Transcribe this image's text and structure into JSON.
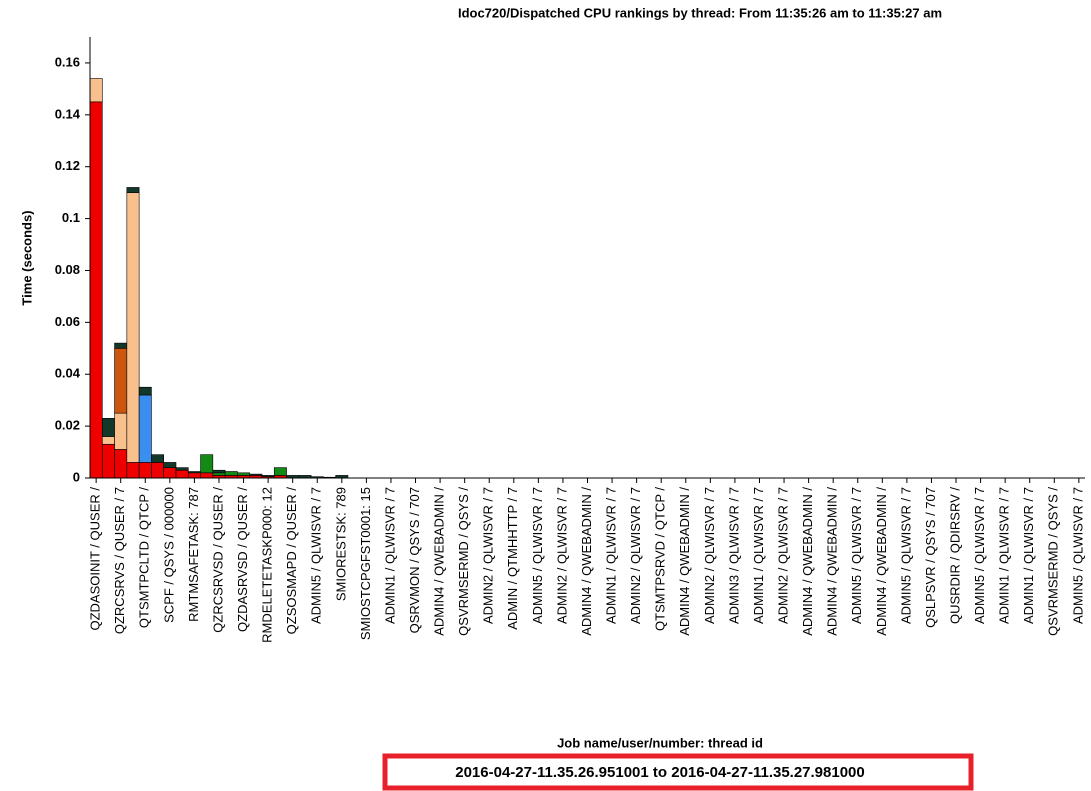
{
  "chart_data": {
    "type": "stacked_bar",
    "title": "Idoc720/Dispatched CPU rankings by thread: From 11:35:26 am to 11:35:27 am",
    "y_label": "Time (seconds)",
    "x_label": "Job name/user/number: thread id",
    "subtitle": "2016-04-27-11.35.26.951001 to 2016-04-27-11.35.27.981000",
    "categories": [
      "QZDASOINIT / QUSER /",
      null,
      "QZRCSRVS / QUSER / 7",
      null,
      "QTSMTPCLTD / QTCP /",
      null,
      "SCPF / QSYS / 000000",
      null,
      "RMTMSAFETASK: 787",
      null,
      "QZRCSRVSD / QUSER /",
      null,
      "QZDASRVSD / QUSER /",
      null,
      "RMDELETETASKP000: 12",
      null,
      "QZSOSMAPD / QUSER /",
      null,
      "ADMIN5 / QLWISVR / 7",
      null,
      "SMIORESTSK: 789",
      null,
      "SMIOSTCPGFST0001: 15",
      null,
      "ADMIN1 / QLWISVR / 7",
      null,
      "QSRVMON / QSYS / 707",
      null,
      "ADMIN4 / QWEBADMIN /",
      null,
      "QSVRMSERMD / QSYS /",
      null,
      "ADMIN2 / QLWISVR / 7",
      null,
      "ADMIN / QTMHHTTP / 7",
      null,
      "ADMIN5 / QLWISVR / 7",
      null,
      "ADMIN2 / QLWISVR / 7",
      null,
      "ADMIN4 / QWEBADMIN /",
      null,
      "ADMIN1 / QLWISVR / 7",
      null,
      "ADMIN2 / QLWISVR / 7",
      null,
      "QTSMTPSRVD / QTCP /",
      null,
      "ADMIN4 / QWEBADMIN /",
      null,
      "ADMIN2 / QLWISVR / 7",
      null,
      "ADMIN3 / QLWISVR / 7",
      null,
      "ADMIN1 / QLWISVR / 7",
      null,
      "ADMIN2 / QLWISVR / 7",
      null,
      "ADMIN4 / QWEBADMIN /",
      null,
      "ADMIN4 / QWEBADMIN /",
      null,
      "ADMIN5 / QLWISVR / 7",
      null,
      "ADMIN4 / QWEBADMIN /",
      null,
      "ADMIN5 / QLWISVR / 7",
      null,
      "QSLPSVR / QSYS / 707",
      null,
      "QUSRDIR / QDIRSRV /",
      null,
      "ADMIN5 / QLWISVR / 7",
      null,
      "ADMIN1 / QLWISVR / 7",
      null,
      "ADMIN1 / QLWISVR / 7",
      null,
      "QSVRMSERMD / QSYS /",
      null,
      "ADMIN5 / QLWISVR / 7"
    ],
    "series": [
      {
        "color": "#ee0000",
        "values": [
          0.145,
          0.013,
          0.011,
          0.006,
          0.006,
          0.006,
          0.004,
          0.003,
          0.002,
          0.002,
          0.001,
          0.001,
          0.001,
          0.001,
          0.0005,
          0.001,
          0,
          0,
          0,
          0,
          0,
          0,
          0,
          0,
          0,
          0,
          0,
          0,
          0,
          0,
          0,
          0,
          0,
          0,
          0,
          0,
          0,
          0,
          0,
          0,
          0,
          0,
          0,
          0,
          0,
          0,
          0,
          0,
          0,
          0,
          0,
          0,
          0,
          0,
          0,
          0,
          0,
          0,
          0,
          0,
          0,
          0,
          0,
          0,
          0,
          0,
          0,
          0,
          0,
          0,
          0,
          0,
          0,
          0,
          0,
          0,
          0,
          0,
          0,
          0,
          0
        ]
      },
      {
        "color": "#f8c08c",
        "values": [
          0.009,
          0.003,
          0.014,
          0.104,
          0,
          0,
          0,
          0,
          0,
          0,
          0,
          0,
          0,
          0,
          0,
          0,
          0,
          0,
          0,
          0,
          0,
          0,
          0,
          0,
          0,
          0,
          0,
          0,
          0,
          0,
          0,
          0,
          0,
          0,
          0,
          0,
          0,
          0,
          0,
          0,
          0,
          0,
          0,
          0,
          0,
          0,
          0,
          0,
          0,
          0,
          0,
          0,
          0,
          0,
          0,
          0,
          0,
          0,
          0,
          0,
          0,
          0,
          0,
          0,
          0,
          0,
          0,
          0,
          0,
          0,
          0,
          0,
          0,
          0,
          0,
          0,
          0,
          0,
          0,
          0,
          0
        ]
      },
      {
        "color": "#cc5510",
        "values": [
          0,
          0,
          0.025,
          0,
          0,
          0,
          0,
          0,
          0,
          0,
          0,
          0,
          0,
          0,
          0,
          0,
          0,
          0,
          0,
          0,
          0,
          0,
          0,
          0,
          0,
          0,
          0,
          0,
          0,
          0,
          0,
          0,
          0,
          0,
          0,
          0,
          0,
          0,
          0,
          0,
          0,
          0,
          0,
          0,
          0,
          0,
          0,
          0,
          0,
          0,
          0,
          0,
          0,
          0,
          0,
          0,
          0,
          0,
          0,
          0,
          0,
          0,
          0,
          0,
          0,
          0,
          0,
          0,
          0,
          0,
          0,
          0,
          0,
          0,
          0,
          0,
          0,
          0,
          0,
          0,
          0
        ]
      },
      {
        "color": "#3a8ef0",
        "values": [
          0,
          0,
          0,
          0,
          0.026,
          0,
          0,
          0,
          0,
          0,
          0,
          0,
          0,
          0,
          0,
          0,
          0,
          0,
          0,
          0,
          0,
          0,
          0,
          0,
          0,
          0,
          0,
          0,
          0,
          0,
          0,
          0,
          0,
          0,
          0,
          0,
          0,
          0,
          0,
          0,
          0,
          0,
          0,
          0,
          0,
          0,
          0,
          0,
          0,
          0,
          0,
          0,
          0,
          0,
          0,
          0,
          0,
          0,
          0,
          0,
          0,
          0,
          0,
          0,
          0,
          0,
          0,
          0,
          0,
          0,
          0,
          0,
          0,
          0,
          0,
          0,
          0,
          0,
          0,
          0,
          0
        ]
      },
      {
        "color": "#138a13",
        "values": [
          0,
          0,
          0,
          0,
          0,
          0,
          0,
          0,
          0,
          0.007,
          0.001,
          0.0015,
          0.001,
          0,
          0,
          0.003,
          0,
          0,
          0,
          0,
          0,
          0,
          0,
          0,
          0,
          0,
          0,
          0,
          0,
          0,
          0,
          0,
          0,
          0,
          0,
          0,
          0,
          0,
          0,
          0,
          0,
          0,
          0,
          0,
          0,
          0,
          0,
          0,
          0,
          0,
          0,
          0,
          0,
          0,
          0,
          0,
          0,
          0,
          0,
          0,
          0,
          0,
          0,
          0,
          0,
          0,
          0,
          0,
          0,
          0,
          0,
          0,
          0,
          0,
          0,
          0,
          0,
          0,
          0,
          0,
          0
        ]
      },
      {
        "color": "#12382a",
        "values": [
          0,
          0.007,
          0.002,
          0.002,
          0.003,
          0.003,
          0.002,
          0.001,
          0.0005,
          0,
          0.001,
          0,
          0,
          0.0005,
          0.0005,
          0,
          0.001,
          0.001,
          0.0005,
          0.0003,
          0.001,
          0,
          0,
          0,
          0,
          0,
          0,
          0,
          0,
          0,
          0,
          0,
          0,
          0,
          0,
          0,
          0,
          0,
          0,
          0,
          0,
          0,
          0,
          0,
          0,
          0,
          0,
          0,
          0,
          0,
          0,
          0,
          0,
          0,
          0,
          0,
          0,
          0,
          0,
          0,
          0,
          0,
          0,
          0,
          0,
          0,
          0,
          0,
          0,
          0,
          0,
          0,
          0,
          0,
          0,
          0,
          0,
          0,
          0,
          0,
          0
        ]
      }
    ],
    "ylim": [
      0,
      0.17
    ],
    "yticks": [
      0,
      0.02,
      0.04,
      0.06,
      0.08,
      0.1,
      0.12,
      0.14,
      0.16
    ]
  }
}
